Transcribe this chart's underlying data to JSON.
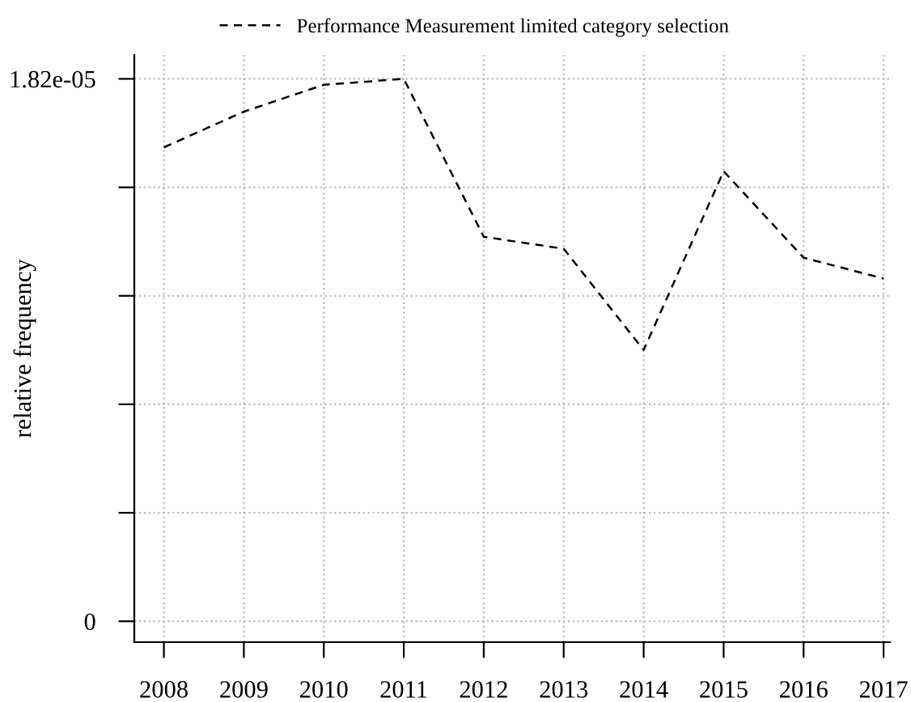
{
  "chart_data": {
    "type": "line",
    "ylabel": "relative frequency",
    "categories": [
      "2008",
      "2009",
      "2010",
      "2011",
      "2012",
      "2013",
      "2014",
      "2015",
      "2016",
      "2017"
    ],
    "series": [
      {
        "name": "Performance Measurement limited category selection",
        "color": "#000000",
        "line_style": "dashed",
        "values": [
          1.59e-05,
          1.71e-05,
          1.8e-05,
          1.82e-05,
          1.29e-05,
          1.25e-05,
          9.1e-06,
          1.51e-05,
          1.22e-05,
          1.15e-05
        ]
      }
    ],
    "ylim": [
      -7e-07,
      1.9e-05
    ],
    "yticks": [
      0,
      {
        "value": 3.64e-06,
        "label": null
      },
      {
        "value": 7.28e-06,
        "label": null
      },
      {
        "value": 1.092e-05,
        "label": null
      },
      {
        "value": 1.456e-05,
        "label": null
      },
      {
        "value": 1.82e-05,
        "label": "1.82e-05"
      }
    ],
    "grid": true,
    "legend": "top",
    "marker": "none"
  }
}
